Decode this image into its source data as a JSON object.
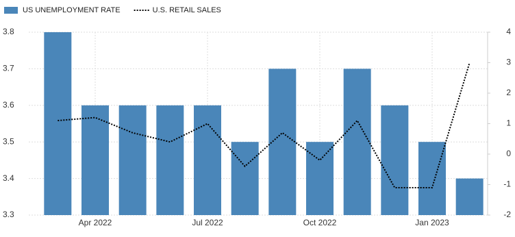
{
  "chart_data": {
    "type": "bar-line",
    "categories": [
      null,
      "Apr 2022",
      null,
      null,
      "Jul 2022",
      null,
      null,
      "Oct 2022",
      null,
      null,
      "Jan 2023",
      null
    ],
    "series": [
      {
        "name": "US UNEMPLOYMENT RATE",
        "type": "bar",
        "color": "#4a86b9",
        "values": [
          3.8,
          3.6,
          3.6,
          3.6,
          3.6,
          3.5,
          3.7,
          3.5,
          3.7,
          3.6,
          3.5,
          3.4
        ]
      },
      {
        "name": "U.S. RETAIL SALES",
        "type": "line",
        "axis": "y2",
        "color": "#000000",
        "values": [
          1.1,
          1.2,
          0.7,
          0.4,
          1.0,
          -0.4,
          0.7,
          -0.2,
          1.1,
          -1.1,
          -1.1,
          3.0
        ]
      }
    ],
    "ylim": [
      3.3,
      3.8
    ],
    "yticks": [
      3.3,
      3.4,
      3.5,
      3.6,
      3.7,
      3.8
    ],
    "y2lim": [
      -2,
      4
    ],
    "y2ticks": [
      -2,
      -1,
      0,
      1,
      2,
      3,
      4
    ],
    "grid": true
  }
}
